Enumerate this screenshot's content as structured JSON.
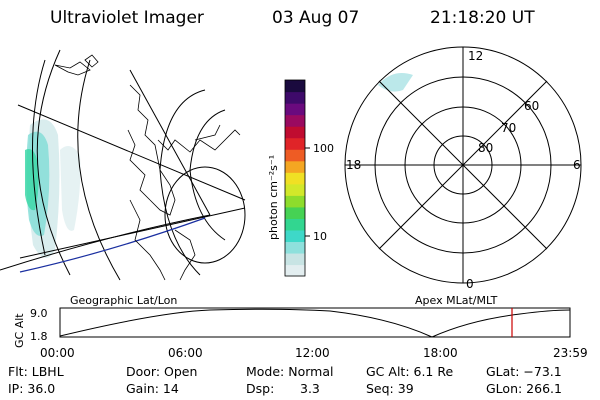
{
  "header": {
    "instrument": "Ultraviolet Imager",
    "date": "03 Aug 07",
    "time": "21:18:20 UT"
  },
  "colorbar": {
    "unit_label": "photon cm⁻²s⁻¹",
    "tick_labels": [
      "100",
      "10"
    ],
    "scale": "log",
    "colors": [
      "#e3eef0",
      "#c8e4e4",
      "#8ee0dc",
      "#3ed8c8",
      "#32d690",
      "#46d254",
      "#8edc2c",
      "#d2e82a",
      "#f0e024",
      "#f4a622",
      "#ee5c24",
      "#e02428",
      "#c00c30",
      "#9a0a60",
      "#6a0a7e",
      "#3e0a6a",
      "#1a0a3e"
    ]
  },
  "polar": {
    "mlt_labels": {
      "top": "12",
      "left": "18",
      "right": "6",
      "bottom": "0"
    },
    "lat_labels": [
      "80",
      "70",
      "60"
    ]
  },
  "strip": {
    "left_label": "Geographic Lat/Lon",
    "right_label": "Apex MLat/MLT",
    "y_axis_label": "GC Alt",
    "y_ticks": [
      "9.0",
      "1.8"
    ],
    "x_ticks": [
      "00:00",
      "06:00",
      "12:00",
      "18:00",
      "23:59"
    ],
    "marker_color": "#cc0000"
  },
  "info": {
    "flt": "Flt: LBHL",
    "ip": "IP: 36.0",
    "door": "Door: Open",
    "gain": "Gain: 14",
    "mode": "Mode: Normal",
    "dsp": "Dsp:",
    "dsp_value": "3.3",
    "gcalt": "GC Alt: 6.1 Re",
    "seq": "Seq: 39",
    "glat": "GLat: −73.1",
    "glon": "GLon: 266.1"
  }
}
